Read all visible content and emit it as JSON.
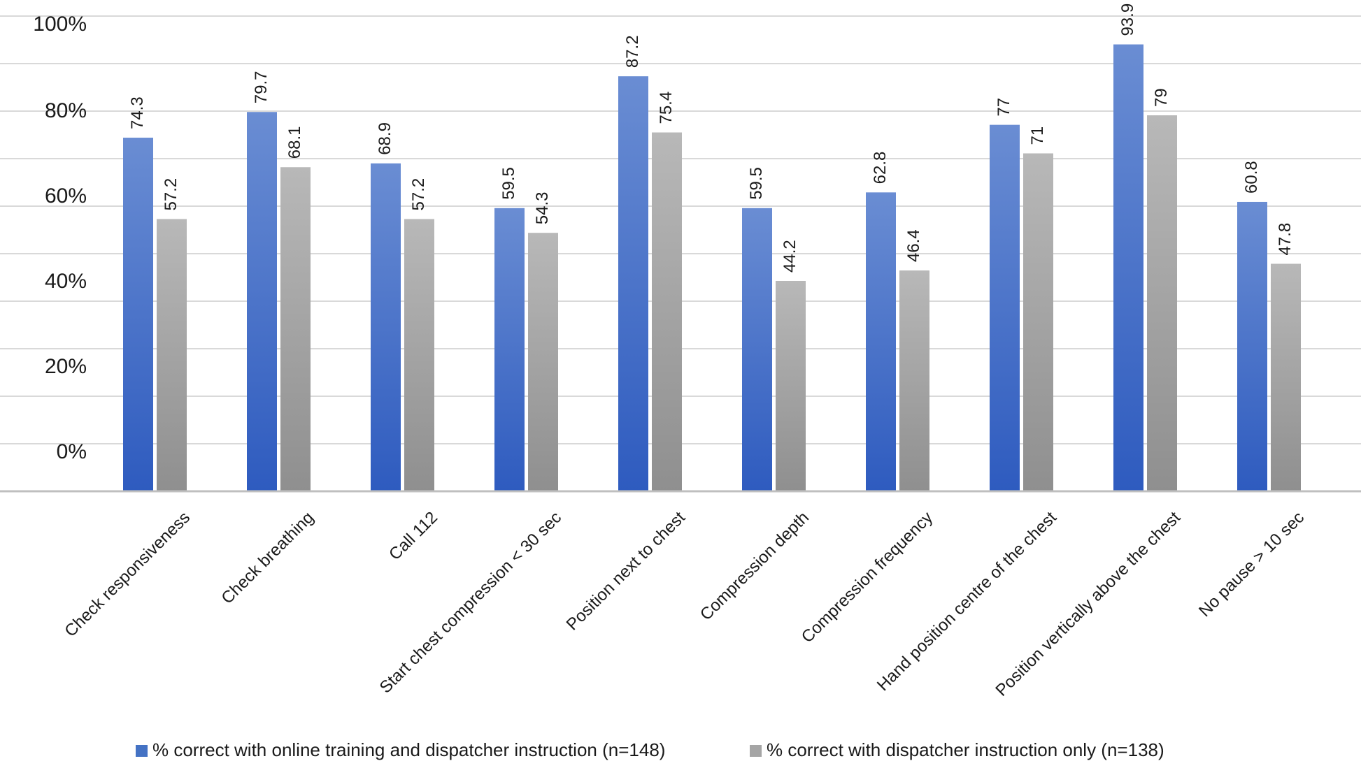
{
  "chart_data": {
    "type": "bar",
    "title": "",
    "xlabel": "",
    "ylabel": "",
    "categories": [
      "Check responsiveness",
      "Check breathing",
      "Call 112",
      "Start chest compression < 30 sec",
      "Position next to chest",
      "Compression depth",
      "Compression frequency",
      "Hand position centre of the chest",
      "Position vertically above the chest",
      "No pause > 10 sec"
    ],
    "series": [
      {
        "name": "% correct with online training and dispatcher instruction (n=148)",
        "color": "#4472C4",
        "values": [
          74.3,
          79.7,
          68.9,
          59.5,
          87.2,
          59.5,
          62.8,
          77,
          93.9,
          60.8
        ],
        "labels": [
          "74.3",
          "79.7",
          "68.9",
          "59.5",
          "87.2",
          "59.5",
          "62.8",
          "77",
          "93.9",
          "60.8"
        ]
      },
      {
        "name": "% correct with dispatcher instruction only (n=138)",
        "color": "#A5A5A5",
        "values": [
          57.2,
          68.1,
          57.2,
          54.3,
          75.4,
          44.2,
          46.4,
          71,
          79,
          47.8
        ],
        "labels": [
          "57.2",
          "68.1",
          "57.2",
          "54.3",
          "75.4",
          "44.2",
          "46.4",
          "71",
          "79",
          "47.8"
        ]
      }
    ],
    "ytick_labels": [
      "0%",
      "20%",
      "40%",
      "60%",
      "80%",
      "100%"
    ],
    "grid": true,
    "legend_position": "bottom"
  }
}
